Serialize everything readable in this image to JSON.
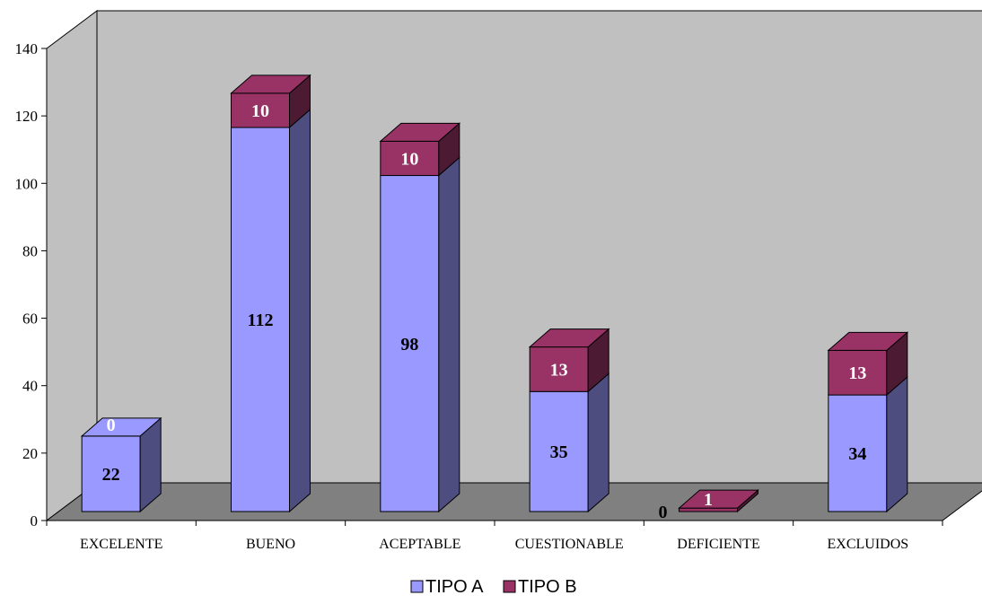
{
  "chart_data": {
    "type": "bar",
    "stacked": true,
    "three_d": true,
    "title": "",
    "xlabel": "",
    "ylabel": "",
    "ylim": [
      0,
      140
    ],
    "yticks": [
      0,
      20,
      40,
      60,
      80,
      100,
      120,
      140
    ],
    "categories": [
      "EXCELENTE",
      "BUENO",
      "ACEPTABLE",
      "CUESTIONABLE",
      "DEFICIENTE",
      "EXCLUIDOS"
    ],
    "series": [
      {
        "name": "TIPO A",
        "values": [
          22,
          112,
          98,
          35,
          0,
          34
        ],
        "color": "#9999ff",
        "side_color": "#4d4d80",
        "label_color": "#000000"
      },
      {
        "name": "TIPO B",
        "values": [
          0,
          10,
          10,
          13,
          1,
          13
        ],
        "color": "#993366",
        "side_color": "#4d1a33",
        "label_color": "#ffffff"
      }
    ],
    "wall_color": "#c0c0c0",
    "floor_color": "#808080",
    "legend_position": "bottom"
  }
}
